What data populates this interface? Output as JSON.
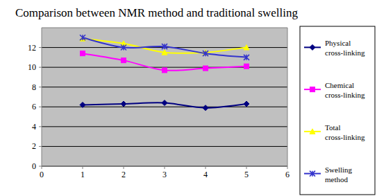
{
  "chart_data": {
    "type": "line",
    "title": "Comparison between NMR method and traditional swelling",
    "x": [
      1,
      2,
      3,
      4,
      5
    ],
    "series": [
      {
        "name": "Physical cross-linking",
        "color": "#000080",
        "marker": "diamond",
        "line_style": "smooth",
        "values": [
          6.2,
          6.3,
          6.4,
          5.9,
          6.3
        ]
      },
      {
        "name": "Chemical cross-linking",
        "color": "#ff00ff",
        "marker": "square",
        "line_style": "smooth",
        "values": [
          11.4,
          10.7,
          9.7,
          9.9,
          10.1
        ]
      },
      {
        "name": "Total cross-linking",
        "color": "#ffff00",
        "marker": "triangle",
        "line_style": "smooth",
        "values": [
          12.9,
          12.4,
          11.5,
          11.5,
          12.0
        ]
      },
      {
        "name": "Swelling method",
        "color": "#3333cc",
        "marker": "star",
        "line_style": "smooth",
        "values": [
          13.0,
          12.0,
          12.1,
          11.4,
          11.0
        ]
      }
    ],
    "xlim": [
      0,
      6
    ],
    "xticks": [
      0,
      1,
      2,
      3,
      4,
      5,
      6
    ],
    "ylim": [
      0,
      14
    ],
    "yticks": [
      0,
      2,
      4,
      6,
      8,
      10,
      12
    ],
    "grid": true,
    "legend": "right"
  }
}
